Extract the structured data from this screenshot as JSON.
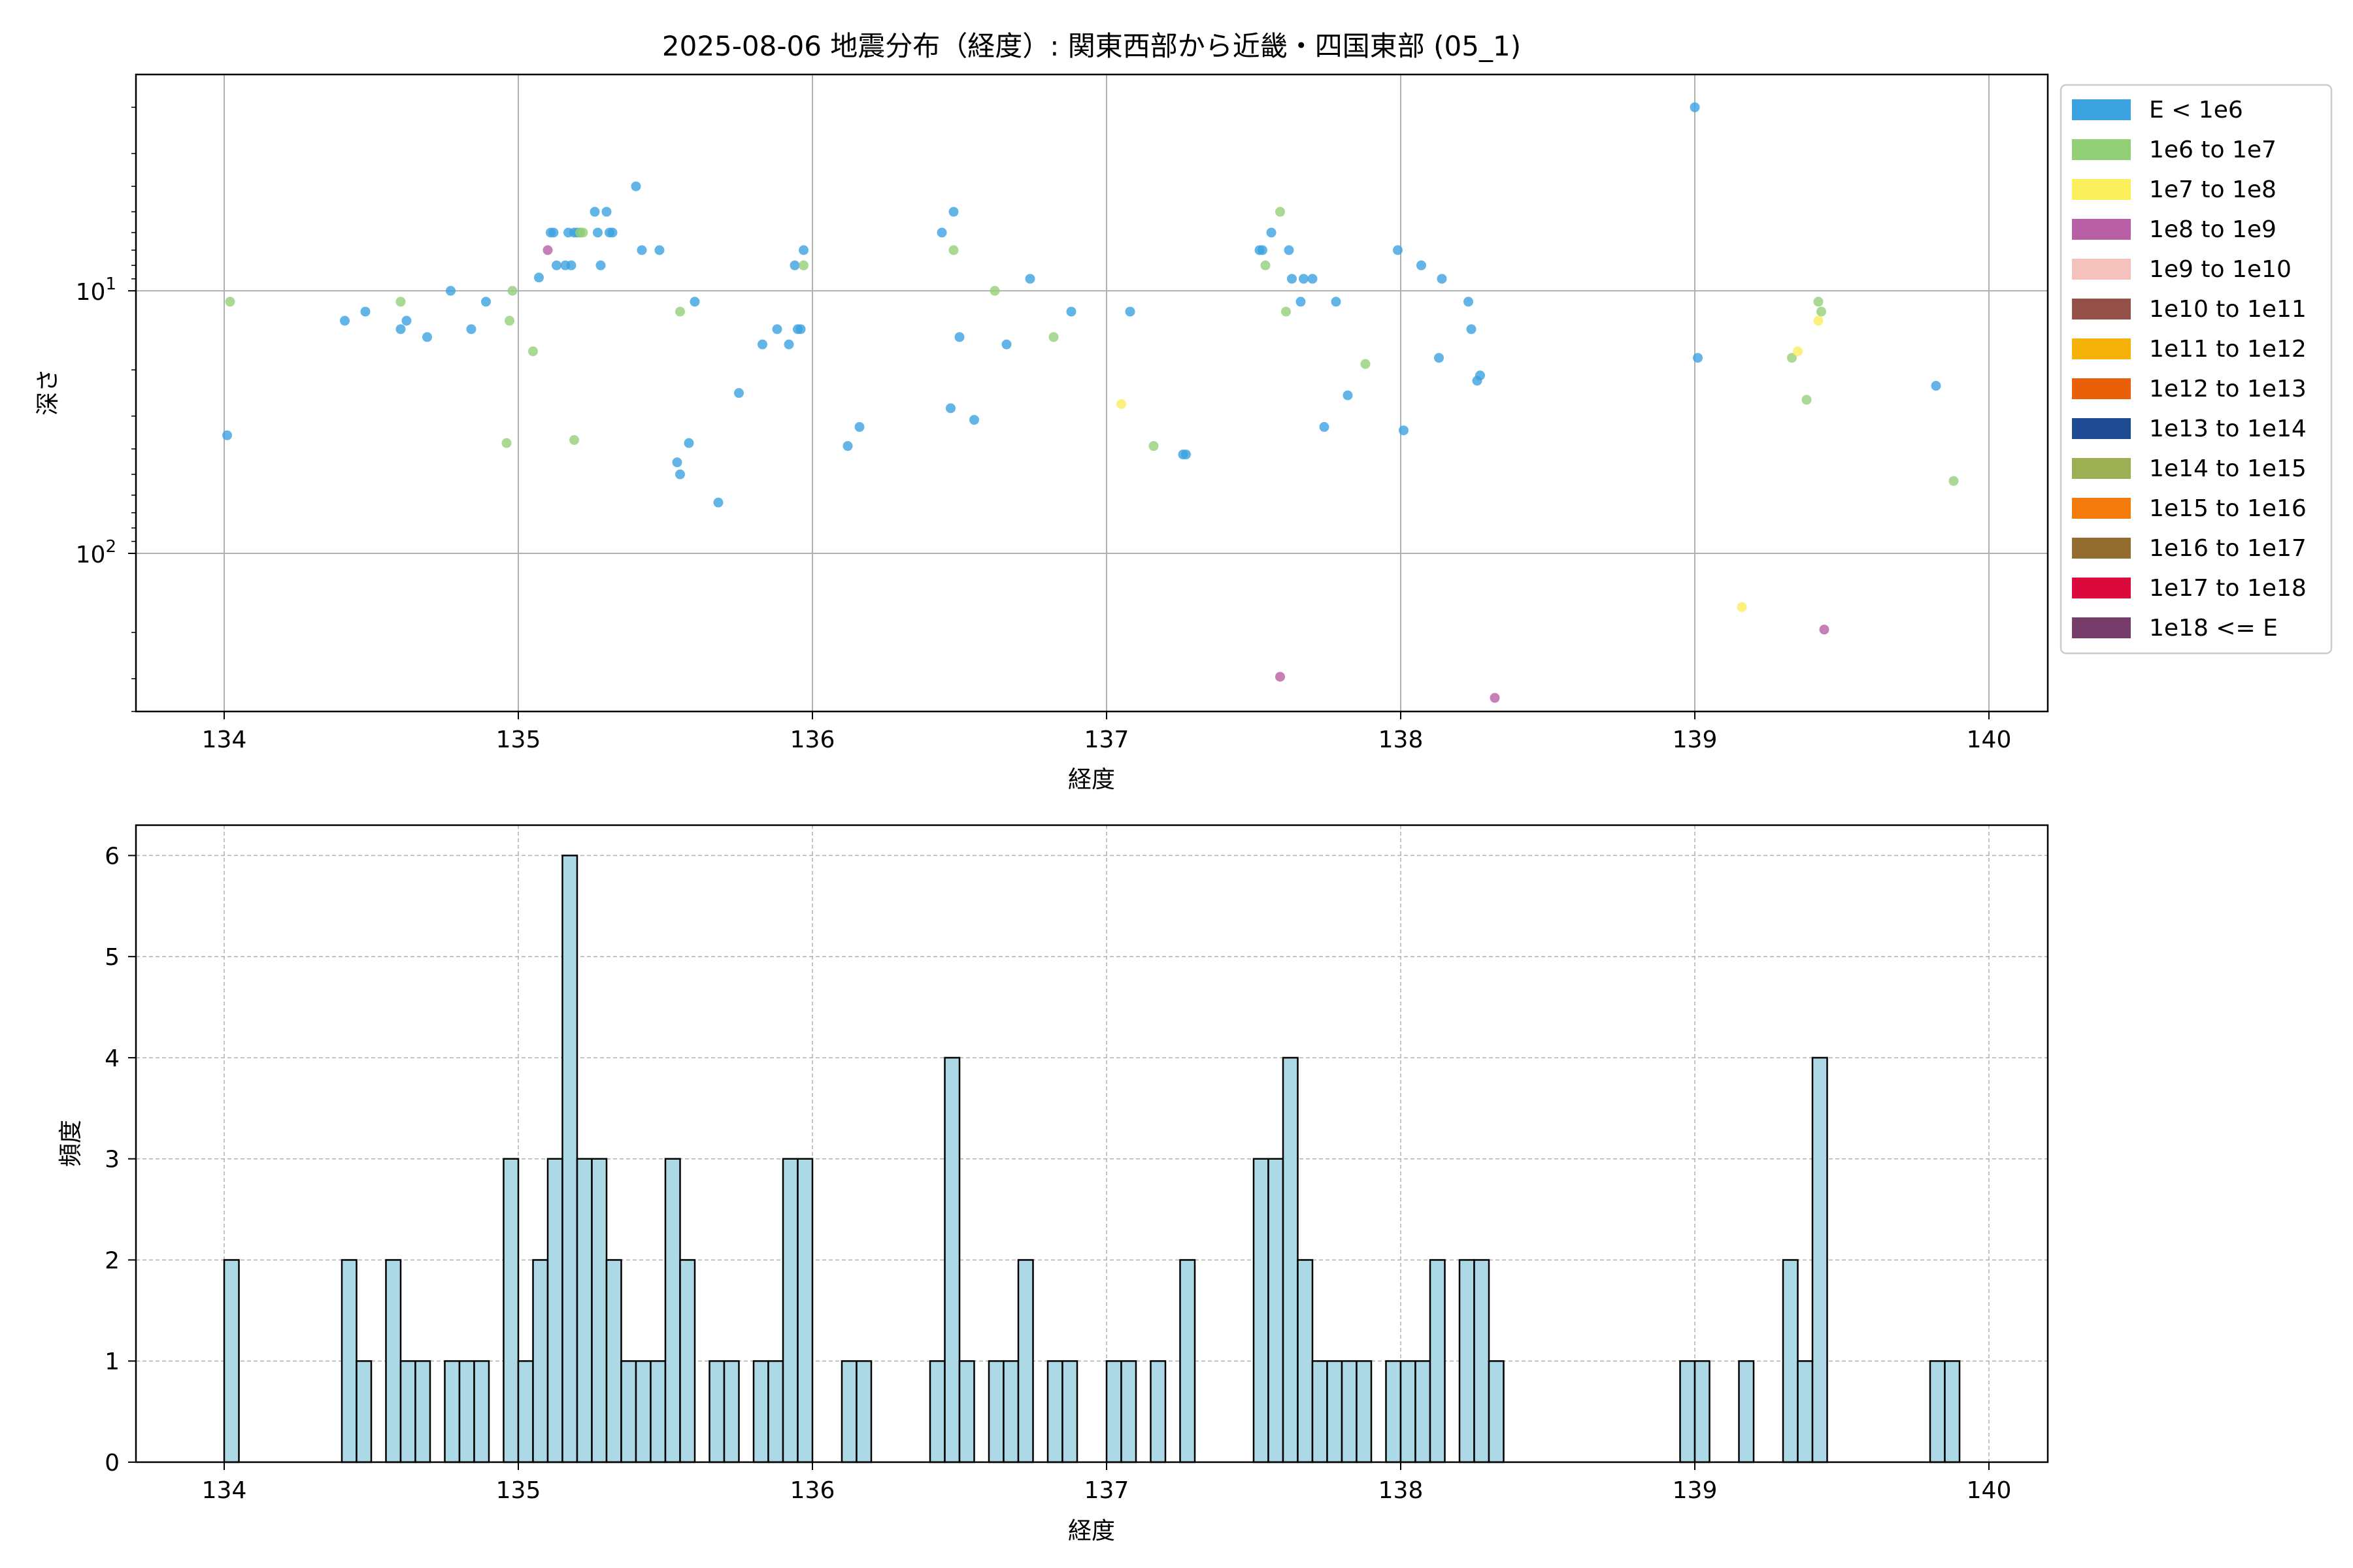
{
  "chart_data": [
    {
      "type": "scatter",
      "title": "2025-08-06 地震分布（経度）: 関東西部から近畿・四国東部 (05_1)",
      "xlabel": "経度",
      "ylabel": "深さ",
      "xlim": [
        133.7,
        140.2
      ],
      "ylim": [
        400,
        1.5
      ],
      "y_scale": "log",
      "y_inverted": true,
      "xticks": [
        "134",
        "135",
        "136",
        "137",
        "138",
        "139",
        "140"
      ],
      "yticks": [
        {
          "value": 10,
          "label": "10",
          "exp": "1"
        },
        {
          "value": 100,
          "label": "10",
          "exp": "2"
        }
      ],
      "grid": true,
      "legend_position": "outside-right",
      "legend": [
        {
          "label": "E < 1e6",
          "color": "#3ba3e0"
        },
        {
          "label": "1e6 to 1e7",
          "color": "#93cf77"
        },
        {
          "label": "1e7 to 1e8",
          "color": "#fbee5b"
        },
        {
          "label": "1e8 to 1e9",
          "color": "#b85fa5"
        },
        {
          "label": "1e9 to 1e10",
          "color": "#f5c1bd"
        },
        {
          "label": "1e10 to 1e11",
          "color": "#955048"
        },
        {
          "label": "1e11 to 1e12",
          "color": "#f6b10b"
        },
        {
          "label": "1e12 to 1e13",
          "color": "#ea6009"
        },
        {
          "label": "1e13 to 1e14",
          "color": "#1f4b93"
        },
        {
          "label": "1e14 to 1e15",
          "color": "#9daf53"
        },
        {
          "label": "1e15 to 1e16",
          "color": "#f27b0c"
        },
        {
          "label": "1e16 to 1e17",
          "color": "#936c2f"
        },
        {
          "label": "1e17 to 1e18",
          "color": "#dc0a3c"
        },
        {
          "label": "1e18 <= E",
          "color": "#763c6a"
        }
      ],
      "series": [
        {
          "class": 0,
          "points": [
            [
              134.01,
              35.5
            ],
            [
              134.41,
              13
            ],
            [
              134.48,
              12
            ],
            [
              134.6,
              14
            ],
            [
              134.62,
              13
            ],
            [
              134.69,
              15
            ],
            [
              134.77,
              10
            ],
            [
              134.84,
              14
            ],
            [
              134.89,
              11
            ],
            [
              135.07,
              8.9
            ],
            [
              135.11,
              6
            ],
            [
              135.12,
              6
            ],
            [
              135.13,
              8
            ],
            [
              135.16,
              8
            ],
            [
              135.17,
              6
            ],
            [
              135.18,
              8
            ],
            [
              135.19,
              6
            ],
            [
              135.2,
              6
            ],
            [
              135.21,
              6
            ],
            [
              135.26,
              5
            ],
            [
              135.27,
              6
            ],
            [
              135.28,
              8
            ],
            [
              135.3,
              5
            ],
            [
              135.31,
              6
            ],
            [
              135.32,
              6
            ],
            [
              135.4,
              4
            ],
            [
              135.42,
              7
            ],
            [
              135.48,
              7
            ],
            [
              135.54,
              45
            ],
            [
              135.55,
              50
            ],
            [
              135.58,
              38
            ],
            [
              135.6,
              11
            ],
            [
              135.68,
              64
            ],
            [
              135.75,
              24.5
            ],
            [
              135.83,
              16
            ],
            [
              135.88,
              14
            ],
            [
              135.92,
              16
            ],
            [
              135.94,
              8
            ],
            [
              135.95,
              14
            ],
            [
              135.96,
              14
            ],
            [
              135.97,
              7
            ],
            [
              136.12,
              39
            ],
            [
              136.16,
              33
            ],
            [
              136.44,
              6
            ],
            [
              136.47,
              28
            ],
            [
              136.48,
              5
            ],
            [
              136.5,
              15
            ],
            [
              136.55,
              31
            ],
            [
              136.66,
              16
            ],
            [
              136.74,
              9
            ],
            [
              136.88,
              12
            ],
            [
              137.08,
              12
            ],
            [
              137.26,
              42
            ],
            [
              137.27,
              42
            ],
            [
              137.52,
              7
            ],
            [
              137.53,
              7
            ],
            [
              137.56,
              6
            ],
            [
              137.62,
              7
            ],
            [
              137.63,
              9
            ],
            [
              137.66,
              11
            ],
            [
              137.67,
              9
            ],
            [
              137.7,
              9
            ],
            [
              137.74,
              33
            ],
            [
              137.78,
              11
            ],
            [
              137.82,
              25
            ],
            [
              137.99,
              7
            ],
            [
              138.01,
              34
            ],
            [
              138.07,
              8
            ],
            [
              138.13,
              18
            ],
            [
              138.14,
              9
            ],
            [
              138.23,
              11
            ],
            [
              138.24,
              14
            ],
            [
              138.26,
              22
            ],
            [
              138.27,
              21
            ],
            [
              139.0,
              2
            ],
            [
              139.01,
              18
            ],
            [
              139.82,
              23
            ]
          ]
        },
        {
          "class": 1,
          "points": [
            [
              134.02,
              11
            ],
            [
              134.6,
              11
            ],
            [
              134.96,
              38
            ],
            [
              134.97,
              13
            ],
            [
              134.98,
              10
            ],
            [
              135.05,
              17
            ],
            [
              135.19,
              37
            ],
            [
              135.21,
              6
            ],
            [
              135.22,
              6
            ],
            [
              135.55,
              12
            ],
            [
              135.97,
              8
            ],
            [
              136.48,
              7
            ],
            [
              136.62,
              10
            ],
            [
              136.82,
              15
            ],
            [
              137.16,
              39
            ],
            [
              137.54,
              8
            ],
            [
              137.59,
              5
            ],
            [
              137.61,
              12
            ],
            [
              137.88,
              19
            ],
            [
              139.33,
              18
            ],
            [
              139.38,
              26
            ],
            [
              139.42,
              11
            ],
            [
              139.43,
              12
            ],
            [
              139.88,
              53
            ]
          ]
        },
        {
          "class": 2,
          "points": [
            [
              137.05,
              27
            ],
            [
              139.16,
              160
            ],
            [
              139.35,
              17
            ],
            [
              139.42,
              13
            ]
          ]
        },
        {
          "class": 3,
          "points": [
            [
              135.1,
              7
            ],
            [
              137.59,
              295
            ],
            [
              138.32,
              355
            ],
            [
              139.44,
              195
            ]
          ]
        }
      ]
    },
    {
      "type": "bar",
      "xlabel": "経度",
      "ylabel": "頻度",
      "xlim": [
        133.7,
        140.2
      ],
      "ylim": [
        0,
        6.3
      ],
      "bin_width": 0.05,
      "xticks": [
        "134",
        "135",
        "136",
        "137",
        "138",
        "139",
        "140"
      ],
      "yticks": [
        "0",
        "1",
        "2",
        "3",
        "4",
        "5",
        "6"
      ],
      "grid": true,
      "bar_color": "#add8e6",
      "bins": [
        [
          134.0,
          2
        ],
        [
          134.4,
          2
        ],
        [
          134.45,
          1
        ],
        [
          134.55,
          2
        ],
        [
          134.6,
          1
        ],
        [
          134.65,
          1
        ],
        [
          134.75,
          1
        ],
        [
          134.8,
          1
        ],
        [
          134.85,
          1
        ],
        [
          134.95,
          3
        ],
        [
          135.0,
          1
        ],
        [
          135.05,
          2
        ],
        [
          135.1,
          3
        ],
        [
          135.15,
          6
        ],
        [
          135.2,
          3
        ],
        [
          135.25,
          3
        ],
        [
          135.3,
          2
        ],
        [
          135.35,
          1
        ],
        [
          135.4,
          1
        ],
        [
          135.45,
          1
        ],
        [
          135.5,
          3
        ],
        [
          135.55,
          2
        ],
        [
          135.65,
          1
        ],
        [
          135.7,
          1
        ],
        [
          135.8,
          1
        ],
        [
          135.85,
          1
        ],
        [
          135.9,
          3
        ],
        [
          135.95,
          3
        ],
        [
          136.1,
          1
        ],
        [
          136.15,
          1
        ],
        [
          136.4,
          1
        ],
        [
          136.45,
          4
        ],
        [
          136.5,
          1
        ],
        [
          136.6,
          1
        ],
        [
          136.65,
          1
        ],
        [
          136.7,
          2
        ],
        [
          136.8,
          1
        ],
        [
          136.85,
          1
        ],
        [
          137.0,
          1
        ],
        [
          137.05,
          1
        ],
        [
          137.15,
          1
        ],
        [
          137.25,
          2
        ],
        [
          137.5,
          3
        ],
        [
          137.55,
          3
        ],
        [
          137.6,
          4
        ],
        [
          137.65,
          2
        ],
        [
          137.7,
          1
        ],
        [
          137.75,
          1
        ],
        [
          137.8,
          1
        ],
        [
          137.85,
          1
        ],
        [
          137.95,
          1
        ],
        [
          138.0,
          1
        ],
        [
          138.05,
          1
        ],
        [
          138.1,
          2
        ],
        [
          138.2,
          2
        ],
        [
          138.25,
          2
        ],
        [
          138.3,
          1
        ],
        [
          138.95,
          1
        ],
        [
          139.0,
          1
        ],
        [
          139.15,
          1
        ],
        [
          139.3,
          2
        ],
        [
          139.35,
          1
        ],
        [
          139.4,
          4
        ],
        [
          139.8,
          1
        ],
        [
          139.85,
          1
        ]
      ]
    }
  ]
}
